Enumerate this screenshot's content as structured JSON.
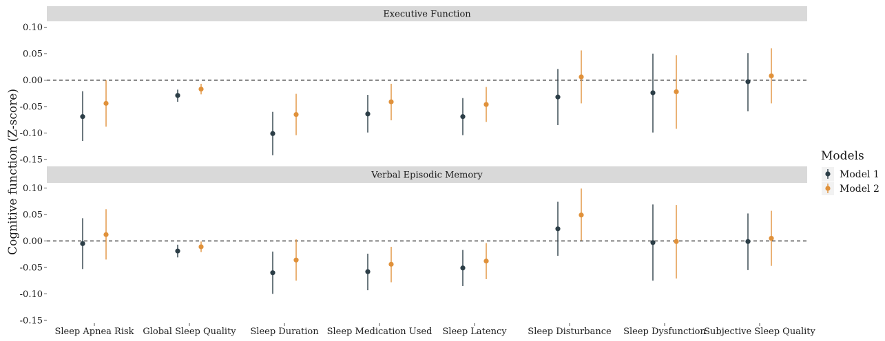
{
  "chart_data": {
    "type": "scatter",
    "ylabel": "Cognitive function (Z-score)",
    "categories": [
      "Sleep Apnea Risk",
      "Global Sleep Quality",
      "Sleep Duration",
      "Sleep Medication Used",
      "Sleep Latency",
      "Sleep Disturbance",
      "Sleep Dysfunction",
      "Subjective Sleep Quality"
    ],
    "legend": {
      "title": "Models",
      "position": "right",
      "items": [
        {
          "name": "Model 1",
          "color": "#2c3e47"
        },
        {
          "name": "Model 2",
          "color": "#e0913a"
        }
      ]
    },
    "reference_line": 0,
    "grid": false,
    "panels": [
      {
        "title": "Executive Function",
        "ylim": [
          -0.16,
          0.1
        ],
        "yticks": [
          {
            "value": 0.1,
            "label": "0.10"
          },
          {
            "value": 0.05,
            "label": "0.05"
          },
          {
            "value": 0.0,
            "label": "0.00"
          },
          {
            "value": -0.05,
            "label": "-0.05"
          },
          {
            "value": -0.1,
            "label": "-0.10"
          },
          {
            "value": -0.15,
            "label": "-0.15"
          }
        ],
        "series": [
          {
            "name": "Model 1",
            "estimates": [
              -0.069,
              -0.029,
              -0.101,
              -0.064,
              -0.069,
              -0.032,
              -0.024,
              -0.003
            ],
            "lower": [
              -0.115,
              -0.041,
              -0.142,
              -0.099,
              -0.104,
              -0.085,
              -0.099,
              -0.059
            ],
            "upper": [
              -0.021,
              -0.018,
              -0.06,
              -0.028,
              -0.034,
              0.021,
              0.05,
              0.051
            ]
          },
          {
            "name": "Model 2",
            "estimates": [
              -0.044,
              -0.017,
              -0.065,
              -0.041,
              -0.046,
              0.006,
              -0.022,
              0.008
            ],
            "lower": [
              -0.088,
              -0.027,
              -0.104,
              -0.076,
              -0.079,
              -0.044,
              -0.092,
              -0.044
            ],
            "upper": [
              0.0,
              -0.007,
              -0.026,
              -0.007,
              -0.013,
              0.056,
              0.047,
              0.06
            ]
          }
        ]
      },
      {
        "title": "Verbal Episodic Memory",
        "ylim": [
          -0.16,
          0.11
        ],
        "yticks": [
          {
            "value": 0.1,
            "label": "0.10"
          },
          {
            "value": 0.05,
            "label": "0.05"
          },
          {
            "value": 0.0,
            "label": "0.00"
          },
          {
            "value": -0.05,
            "label": "-0.05"
          },
          {
            "value": -0.1,
            "label": "-0.10"
          },
          {
            "value": -0.15,
            "label": "-0.15"
          }
        ],
        "series": [
          {
            "name": "Model 1",
            "estimates": [
              -0.005,
              -0.019,
              -0.06,
              -0.058,
              -0.051,
              0.023,
              -0.003,
              -0.001
            ],
            "lower": [
              -0.053,
              -0.031,
              -0.1,
              -0.093,
              -0.085,
              -0.028,
              -0.075,
              -0.055
            ],
            "upper": [
              0.043,
              -0.007,
              -0.02,
              -0.024,
              -0.017,
              0.074,
              0.069,
              0.052
            ]
          },
          {
            "name": "Model 2",
            "estimates": [
              0.012,
              -0.011,
              -0.036,
              -0.044,
              -0.038,
              0.049,
              -0.001,
              0.005
            ],
            "lower": [
              -0.035,
              -0.021,
              -0.075,
              -0.078,
              -0.072,
              0.001,
              -0.071,
              -0.047
            ],
            "upper": [
              0.06,
              -0.001,
              0.003,
              -0.011,
              -0.004,
              0.099,
              0.068,
              0.057
            ]
          }
        ]
      }
    ]
  }
}
